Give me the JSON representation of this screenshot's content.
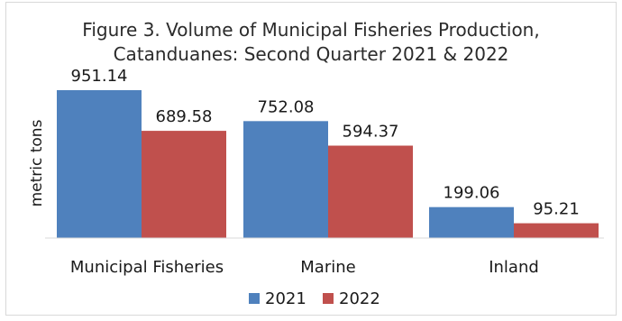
{
  "chart_data": {
    "type": "bar",
    "title_line1": "Figure 3. Volume of Municipal Fisheries Production,",
    "title_line2": "Catanduanes: Second Quarter 2021 & 2022",
    "ylabel": "metric tons",
    "xlabel": "",
    "categories": [
      "Municipal Fisheries",
      "Marine",
      "Inland"
    ],
    "series": [
      {
        "name": "2021",
        "color": "#4f81bd",
        "values": [
          951.14,
          752.08,
          199.06
        ]
      },
      {
        "name": "2022",
        "color": "#c0504d",
        "values": [
          689.58,
          594.37,
          95.21
        ]
      }
    ],
    "data_labels": [
      [
        "951.14",
        "752.08",
        "199.06"
      ],
      [
        "689.58",
        "594.37",
        "95.21"
      ]
    ],
    "ylim": [
      0,
      951.14
    ],
    "grid": false,
    "legend_position": "bottom"
  }
}
